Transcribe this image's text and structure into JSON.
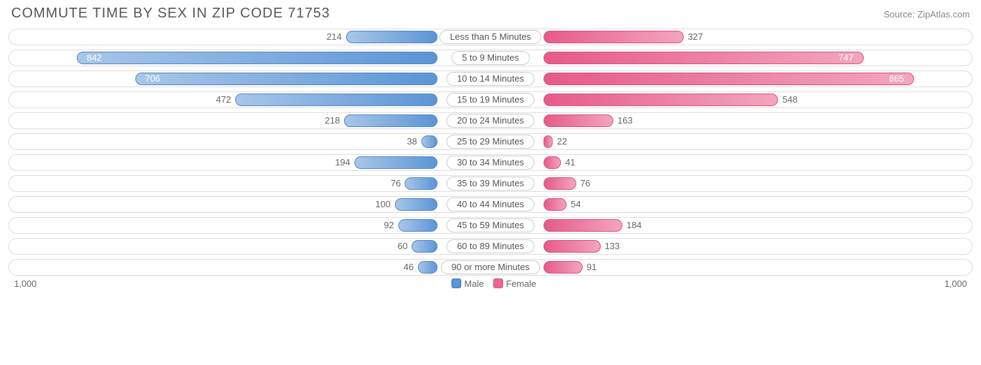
{
  "title": "COMMUTE TIME BY SEX IN ZIP CODE 71753",
  "source": "Source: ZipAtlas.com",
  "axis_max": 1000,
  "axis_label_left": "1,000",
  "axis_label_right": "1,000",
  "legend": {
    "male": "Male",
    "female": "Female"
  },
  "colors": {
    "male_bar_start": "#a8c6e8",
    "male_bar_end": "#5b95d6",
    "male_border": "#4f86c6",
    "female_bar_start": "#e65a8a",
    "female_bar_end": "#f3a6bd",
    "female_border": "#db4e7e",
    "track_border": "#dddddd",
    "text": "#666666",
    "title_text": "#555555",
    "background": "#ffffff"
  },
  "label_inside_threshold": 700,
  "category_label_half_width_pct": 11,
  "rows": [
    {
      "label": "Less than 5 Minutes",
      "male": 214,
      "female": 327
    },
    {
      "label": "5 to 9 Minutes",
      "male": 842,
      "female": 747
    },
    {
      "label": "10 to 14 Minutes",
      "male": 706,
      "female": 865
    },
    {
      "label": "15 to 19 Minutes",
      "male": 472,
      "female": 548
    },
    {
      "label": "20 to 24 Minutes",
      "male": 218,
      "female": 163
    },
    {
      "label": "25 to 29 Minutes",
      "male": 38,
      "female": 22
    },
    {
      "label": "30 to 34 Minutes",
      "male": 194,
      "female": 41
    },
    {
      "label": "35 to 39 Minutes",
      "male": 76,
      "female": 76
    },
    {
      "label": "40 to 44 Minutes",
      "male": 100,
      "female": 54
    },
    {
      "label": "45 to 59 Minutes",
      "male": 92,
      "female": 184
    },
    {
      "label": "60 to 89 Minutes",
      "male": 60,
      "female": 133
    },
    {
      "label": "90 or more Minutes",
      "male": 46,
      "female": 91
    }
  ],
  "chart_type": "diverging-bar",
  "title_fontsize": 20,
  "label_fontsize": 13
}
